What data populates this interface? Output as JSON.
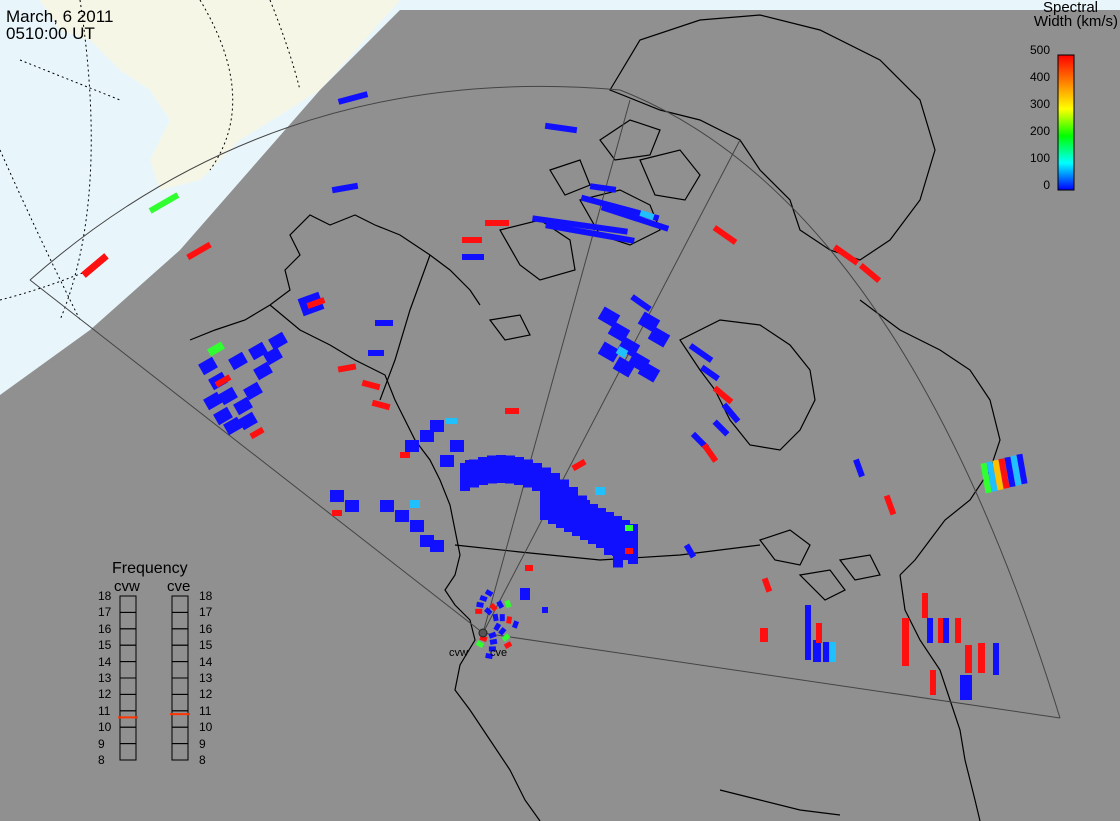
{
  "header": {
    "date": "March, 6 2011",
    "time": "0510:00 UT"
  },
  "colorbar": {
    "title_line1": "Spectral",
    "title_line2": "Width (km/s)",
    "ticks": [
      "500",
      "400",
      "300",
      "200",
      "100",
      "0"
    ],
    "colors": [
      "#ff0000",
      "#ff8000",
      "#ffff00",
      "#00ff00",
      "#00ffff",
      "#0000ff"
    ]
  },
  "frequency_panel": {
    "title": "Frequency",
    "radars": [
      "cvw",
      "cve"
    ],
    "ticks": [
      "18",
      "17",
      "16",
      "15",
      "14",
      "13",
      "12",
      "11",
      "10",
      "9",
      "8"
    ],
    "current_mhz": [
      10.6,
      10.8
    ],
    "marker_color": "#ff3300"
  },
  "radar_sites": [
    "cvw",
    "cve"
  ],
  "colors": {
    "ocean": "#e8f6fc",
    "land_night": "#909090",
    "land_day": "#f6f6e6",
    "coast": "#000000"
  }
}
